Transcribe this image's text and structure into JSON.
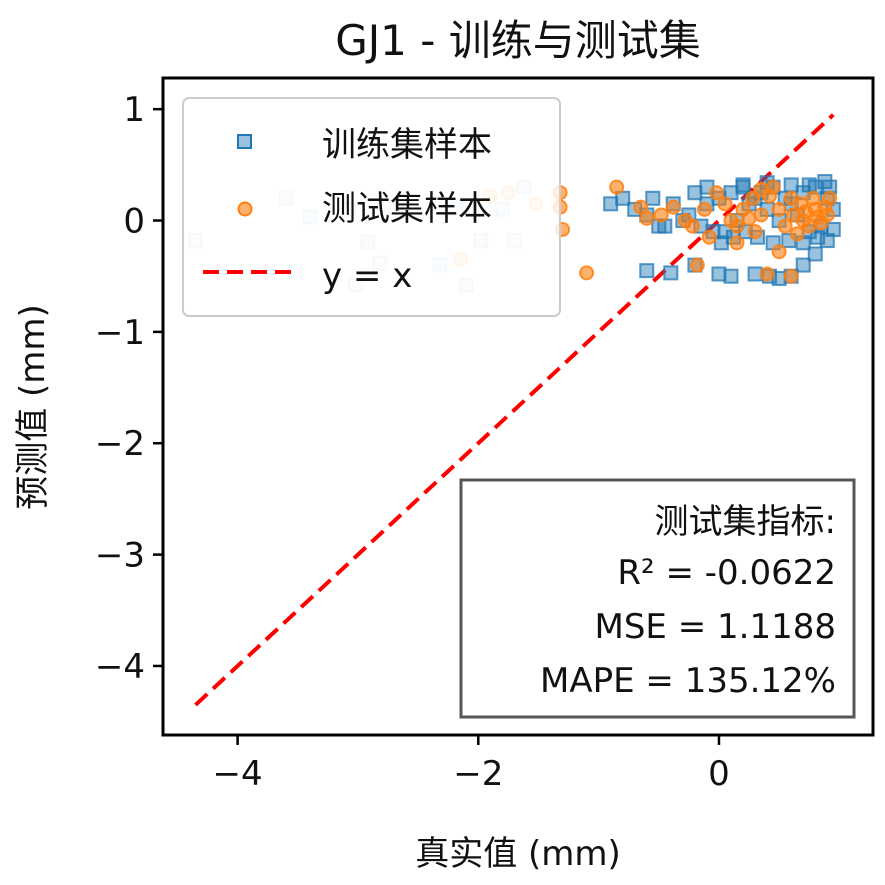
{
  "chart_data": {
    "type": "scatter",
    "title": "GJ1 - 训练与测试集",
    "xlabel": "真实值 (mm)",
    "ylabel": "预测值 (mm)",
    "xlim": [
      -4.62,
      1.28
    ],
    "ylim": [
      -4.62,
      1.28
    ],
    "xticks": [
      -4,
      -2,
      0
    ],
    "yticks": [
      1,
      0,
      -1,
      -2,
      -3,
      -4
    ],
    "xtick_labels": [
      "−4",
      "−2",
      "0"
    ],
    "ytick_labels": [
      "1",
      "0",
      "−1",
      "−2",
      "−3",
      "−4"
    ],
    "legend_position": "top-left",
    "grid": false,
    "series": [
      {
        "name": "训练集样本",
        "marker": "square",
        "color": "#1f77b4",
        "points": [
          [
            -4.35,
            -0.18
          ],
          [
            -3.6,
            0.2
          ],
          [
            -3.52,
            -0.46
          ],
          [
            -3.4,
            0.03
          ],
          [
            -3.08,
            0.1
          ],
          [
            -3.02,
            -0.58
          ],
          [
            -2.92,
            -0.19
          ],
          [
            -2.82,
            -0.38
          ],
          [
            -2.68,
            0.12
          ],
          [
            -2.32,
            -0.4
          ],
          [
            -2.18,
            0.11
          ],
          [
            -2.1,
            -0.58
          ],
          [
            -1.98,
            -0.18
          ],
          [
            -1.8,
            0.1
          ],
          [
            -1.7,
            -0.18
          ],
          [
            -1.62,
            0.3
          ],
          [
            -0.2,
            0.25
          ],
          [
            -0.38,
            0.15
          ],
          [
            -0.55,
            0.2
          ],
          [
            -0.7,
            0.1
          ],
          [
            -0.45,
            -0.05
          ],
          [
            -0.25,
            0.05
          ],
          [
            -0.1,
            0.15
          ],
          [
            0.0,
            0.2
          ],
          [
            0.1,
            0.25
          ],
          [
            0.2,
            0.3
          ],
          [
            0.3,
            0.2
          ],
          [
            0.4,
            0.1
          ],
          [
            0.5,
            0.0
          ],
          [
            0.6,
            0.15
          ],
          [
            0.7,
            0.25
          ],
          [
            0.8,
            0.3
          ],
          [
            0.9,
            0.2
          ],
          [
            0.95,
            0.1
          ],
          [
            0.85,
            -0.05
          ],
          [
            0.75,
            -0.1
          ],
          [
            0.65,
            0.05
          ],
          [
            0.55,
            0.2
          ],
          [
            0.45,
            0.3
          ],
          [
            0.35,
            0.25
          ],
          [
            0.25,
            0.15
          ],
          [
            0.15,
            0.0
          ],
          [
            0.05,
            -0.1
          ],
          [
            -0.05,
            -0.1
          ],
          [
            -0.15,
            -0.05
          ],
          [
            -0.3,
            0.0
          ],
          [
            -0.5,
            -0.05
          ],
          [
            -0.6,
            0.05
          ],
          [
            -0.8,
            0.2
          ],
          [
            -0.9,
            0.15
          ],
          [
            -0.6,
            -0.45
          ],
          [
            -0.4,
            -0.47
          ],
          [
            -0.2,
            -0.4
          ],
          [
            0.0,
            -0.48
          ],
          [
            0.1,
            -0.5
          ],
          [
            0.3,
            -0.48
          ],
          [
            0.42,
            -0.5
          ],
          [
            0.5,
            -0.52
          ],
          [
            0.6,
            -0.5
          ],
          [
            0.7,
            -0.4
          ],
          [
            0.8,
            -0.3
          ],
          [
            0.9,
            -0.18
          ],
          [
            0.95,
            -0.08
          ],
          [
            0.92,
            0.3
          ],
          [
            0.88,
            0.35
          ],
          [
            0.75,
            0.32
          ],
          [
            0.6,
            0.32
          ],
          [
            0.4,
            0.34
          ],
          [
            0.2,
            0.32
          ],
          [
            -0.1,
            0.3
          ],
          [
            0.02,
            -0.2
          ],
          [
            0.12,
            -0.15
          ],
          [
            0.22,
            -0.1
          ],
          [
            0.32,
            -0.15
          ],
          [
            0.45,
            -0.2
          ],
          [
            0.58,
            -0.18
          ],
          [
            0.7,
            -0.2
          ],
          [
            0.82,
            -0.15
          ]
        ]
      },
      {
        "name": "测试集样本",
        "marker": "circle",
        "color": "#ff7f0e",
        "points": [
          [
            -2.15,
            -0.35
          ],
          [
            -1.9,
            0.22
          ],
          [
            -1.75,
            0.25
          ],
          [
            -1.52,
            0.15
          ],
          [
            -1.32,
            0.25
          ],
          [
            -1.32,
            0.12
          ],
          [
            -1.3,
            -0.08
          ],
          [
            -1.1,
            -0.47
          ],
          [
            -0.85,
            0.3
          ],
          [
            -0.65,
            0.12
          ],
          [
            -0.6,
            0.02
          ],
          [
            -0.48,
            0.05
          ],
          [
            -0.38,
            0.12
          ],
          [
            -0.28,
            0.0
          ],
          [
            -0.22,
            -0.05
          ],
          [
            -0.18,
            -0.4
          ],
          [
            -0.12,
            0.1
          ],
          [
            -0.08,
            -0.15
          ],
          [
            -0.02,
            0.25
          ],
          [
            0.05,
            0.15
          ],
          [
            0.1,
            0.0
          ],
          [
            0.15,
            -0.05
          ],
          [
            0.15,
            -0.2
          ],
          [
            0.2,
            0.1
          ],
          [
            0.28,
            0.2
          ],
          [
            0.3,
            -0.1
          ],
          [
            0.35,
            0.05
          ],
          [
            0.4,
            -0.48
          ],
          [
            0.42,
            0.22
          ],
          [
            0.45,
            0.3
          ],
          [
            0.5,
            0.1
          ],
          [
            0.55,
            -0.05
          ],
          [
            0.6,
            0.2
          ],
          [
            0.62,
            0.05
          ],
          [
            0.65,
            -0.12
          ],
          [
            0.68,
            0.15
          ],
          [
            0.7,
            0.0
          ],
          [
            0.72,
            0.08
          ],
          [
            0.75,
            -0.05
          ],
          [
            0.78,
            0.2
          ],
          [
            0.8,
            0.1
          ],
          [
            0.82,
            0.03
          ],
          [
            0.85,
            -0.02
          ],
          [
            0.88,
            0.12
          ],
          [
            0.9,
            0.05
          ],
          [
            0.92,
            0.2
          ],
          [
            0.5,
            -0.28
          ],
          [
            0.6,
            -0.5
          ],
          [
            0.35,
            0.28
          ],
          [
            0.25,
            0.02
          ]
        ]
      }
    ],
    "reference_line": {
      "name": "y = x",
      "from": [
        -4.35,
        -4.35
      ],
      "to": [
        0.95,
        0.95
      ],
      "color": "#ff0000",
      "style": "dashed"
    },
    "annotation": {
      "title": "测试集指标:",
      "lines": [
        "R² = -0.0622",
        "MSE = 1.1188",
        "MAPE = 135.12%"
      ]
    }
  }
}
